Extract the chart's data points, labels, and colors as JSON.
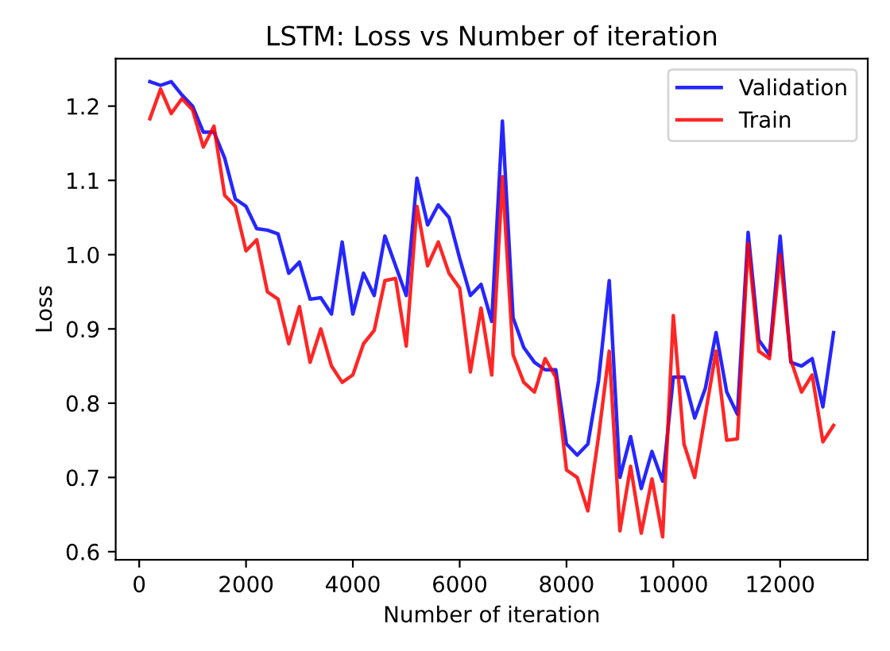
{
  "chart_data": {
    "type": "line",
    "title": "LSTM: Loss vs Number of iteration",
    "xlabel": "Number of iteration",
    "ylabel": "Loss",
    "x": [
      200,
      400,
      600,
      800,
      1000,
      1200,
      1400,
      1600,
      1800,
      2000,
      2200,
      2400,
      2600,
      2800,
      3000,
      3200,
      3400,
      3600,
      3800,
      4000,
      4200,
      4400,
      4600,
      4800,
      5000,
      5200,
      5400,
      5600,
      5800,
      6000,
      6200,
      6400,
      6600,
      6800,
      7000,
      7200,
      7400,
      7600,
      7800,
      8000,
      8200,
      8400,
      8600,
      8800,
      9000,
      9200,
      9400,
      9600,
      9800,
      10000,
      10200,
      10400,
      10600,
      10800,
      11000,
      11200,
      11400,
      11600,
      11800,
      12000,
      12200,
      12400,
      12600,
      12800,
      13000
    ],
    "series": [
      {
        "name": "Validation",
        "color": "#0000ff",
        "values": [
          1.233,
          1.228,
          1.233,
          1.215,
          1.2,
          1.165,
          1.165,
          1.13,
          1.075,
          1.065,
          1.035,
          1.033,
          1.028,
          0.975,
          0.99,
          0.94,
          0.942,
          0.92,
          1.017,
          0.92,
          0.975,
          0.945,
          1.025,
          0.985,
          0.945,
          1.103,
          1.04,
          1.067,
          1.05,
          0.995,
          0.945,
          0.96,
          0.91,
          1.18,
          0.915,
          0.875,
          0.855,
          0.845,
          0.845,
          0.745,
          0.73,
          0.745,
          0.83,
          0.965,
          0.7,
          0.755,
          0.685,
          0.735,
          0.695,
          0.835,
          0.835,
          0.78,
          0.82,
          0.895,
          0.815,
          0.785,
          1.03,
          0.885,
          0.865,
          1.025,
          0.855,
          0.85,
          0.86,
          0.795,
          0.895
        ]
      },
      {
        "name": "Train",
        "color": "#ff0000",
        "values": [
          1.183,
          1.223,
          1.19,
          1.21,
          1.195,
          1.145,
          1.173,
          1.08,
          1.065,
          1.005,
          1.02,
          0.95,
          0.94,
          0.88,
          0.93,
          0.855,
          0.9,
          0.85,
          0.828,
          0.838,
          0.88,
          0.898,
          0.965,
          0.968,
          0.877,
          1.065,
          0.985,
          1.017,
          0.975,
          0.955,
          0.842,
          0.928,
          0.838,
          1.105,
          0.865,
          0.828,
          0.815,
          0.86,
          0.835,
          0.71,
          0.7,
          0.655,
          0.755,
          0.87,
          0.628,
          0.715,
          0.625,
          0.698,
          0.62,
          0.918,
          0.745,
          0.7,
          0.785,
          0.87,
          0.75,
          0.752,
          1.015,
          0.87,
          0.86,
          1.0,
          0.858,
          0.815,
          0.838,
          0.748,
          0.77
        ]
      }
    ],
    "xlim": [
      -440,
      13640
    ],
    "ylim": [
      0.589,
      1.264
    ],
    "xticks": [
      0,
      2000,
      4000,
      6000,
      8000,
      10000,
      12000
    ],
    "yticks": [
      {
        "value": 0.6,
        "label": "0.6"
      },
      {
        "value": 0.7,
        "label": "0.7"
      },
      {
        "value": 0.8,
        "label": "0.8"
      },
      {
        "value": 0.9,
        "label": "0.9"
      },
      {
        "value": 1.0,
        "label": "1.0"
      },
      {
        "value": 1.1,
        "label": "1.1"
      },
      {
        "value": 1.2,
        "label": "1.2"
      }
    ],
    "legend": "top right",
    "grid": false,
    "marker": "none",
    "line_style": "solid"
  }
}
